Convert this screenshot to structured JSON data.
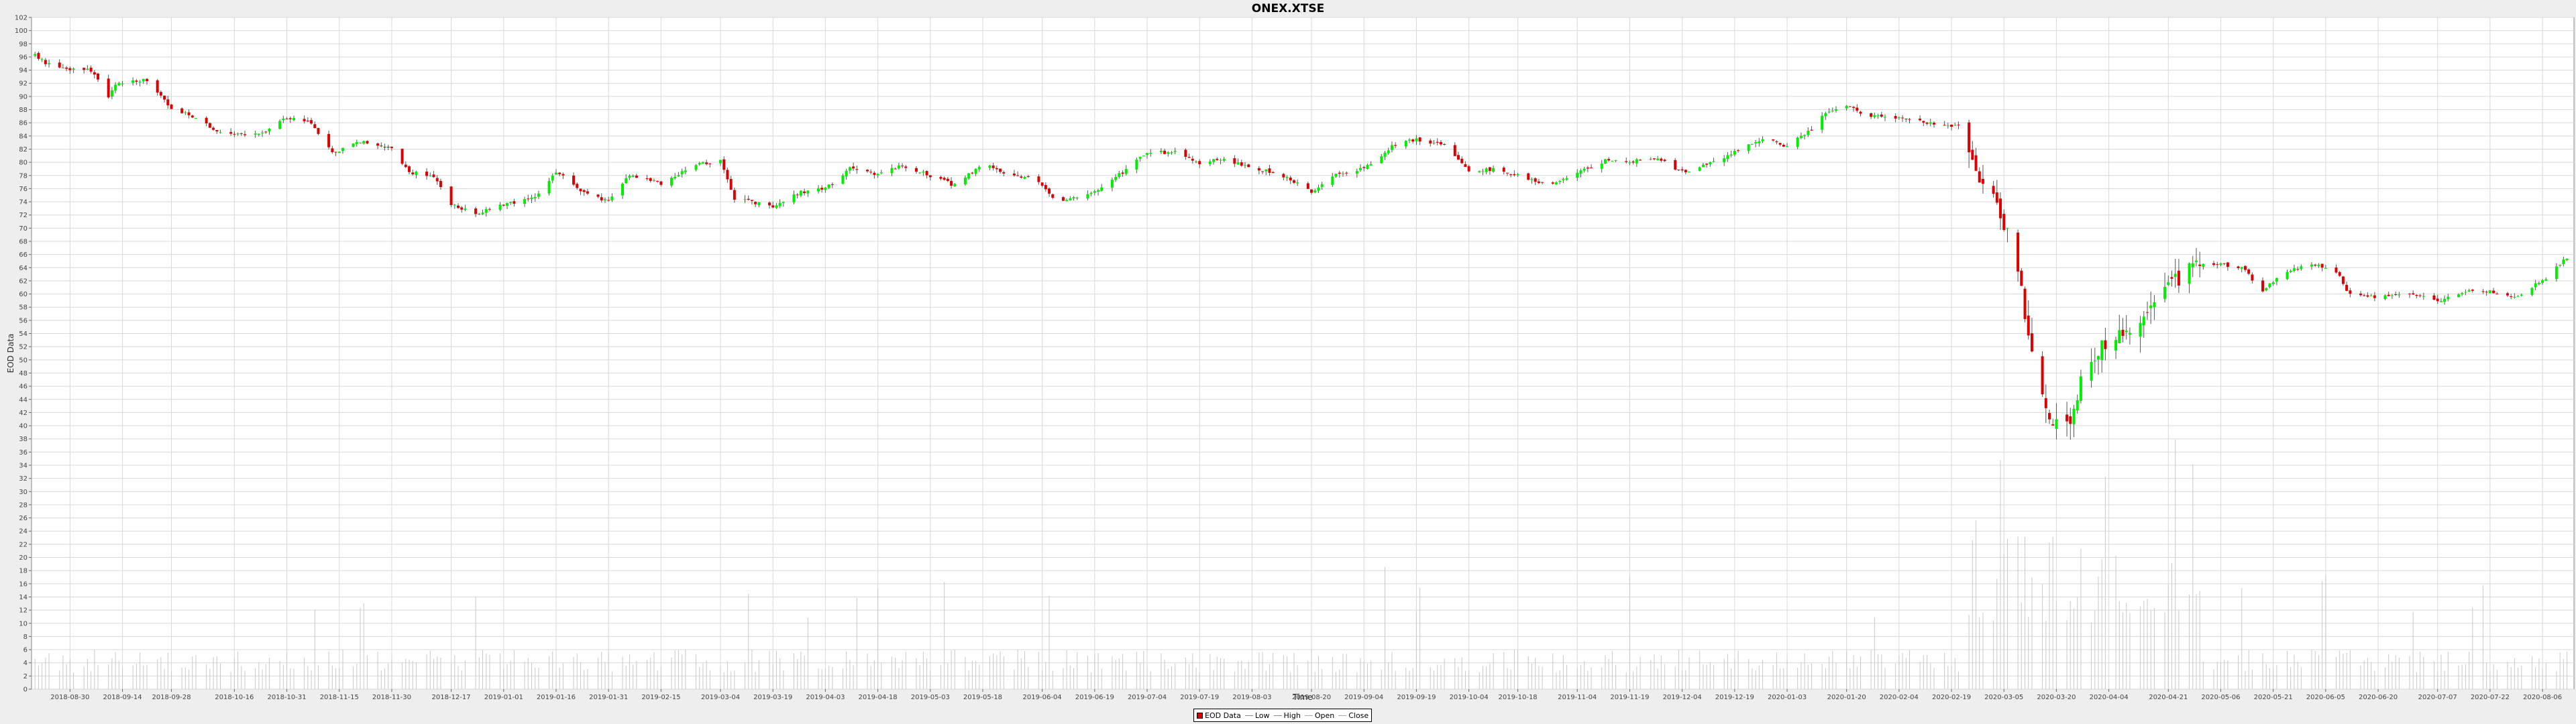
{
  "chart_data": {
    "type": "candlestick",
    "title": "ONEX.XTSE",
    "xlabel": "Time",
    "ylabel": "EOD Data",
    "ylim": [
      0,
      102
    ],
    "ytick_step": 2,
    "x_ticks": [
      "2018-08-30",
      "2018-09-14",
      "2018-09-28",
      "2018-10-16",
      "2018-10-31",
      "2018-11-15",
      "2018-11-30",
      "2018-12-17",
      "2019-01-01",
      "2019-01-16",
      "2019-01-31",
      "2019-02-15",
      "2019-03-04",
      "2019-03-19",
      "2019-04-03",
      "2019-04-18",
      "2019-05-03",
      "2019-05-18",
      "2019-06-04",
      "2019-06-19",
      "2019-07-04",
      "2019-07-19",
      "2019-08-03",
      "2019-08-20",
      "2019-09-04",
      "2019-09-19",
      "2019-10-04",
      "2019-10-18",
      "2019-11-04",
      "2019-11-19",
      "2019-12-04",
      "2019-12-19",
      "2020-01-03",
      "2020-01-20",
      "2020-02-04",
      "2020-02-19",
      "2020-03-05",
      "2020-03-20",
      "2020-04-04",
      "2020-04-21",
      "2020-05-06",
      "2020-05-21",
      "2020-06-05",
      "2020-06-20",
      "2020-07-07",
      "2020-07-22",
      "2020-08-06"
    ],
    "price_anchors": [
      [
        "2018-08-20",
        96.2
      ],
      [
        "2018-08-24",
        94.8
      ],
      [
        "2018-08-30",
        94.2
      ],
      [
        "2018-09-05",
        94.0
      ],
      [
        "2018-09-10",
        90.0
      ],
      [
        "2018-09-12",
        92.0
      ],
      [
        "2018-09-21",
        92.5
      ],
      [
        "2018-09-28",
        88.0
      ],
      [
        "2018-10-05",
        86.8
      ],
      [
        "2018-10-10",
        85.0
      ],
      [
        "2018-10-16",
        84.2
      ],
      [
        "2018-10-24",
        84.5
      ],
      [
        "2018-10-31",
        86.8
      ],
      [
        "2018-11-07",
        86.0
      ],
      [
        "2018-11-13",
        81.5
      ],
      [
        "2018-11-22",
        83.2
      ],
      [
        "2018-11-30",
        82.0
      ],
      [
        "2018-12-05",
        78.5
      ],
      [
        "2018-12-12",
        78.0
      ],
      [
        "2018-12-17",
        73.5
      ],
      [
        "2018-12-24",
        72.2
      ],
      [
        "2019-01-01",
        73.5
      ],
      [
        "2019-01-10",
        74.5
      ],
      [
        "2019-01-16",
        78.5
      ],
      [
        "2019-01-24",
        75.5
      ],
      [
        "2019-01-31",
        74.0
      ],
      [
        "2019-02-06",
        78.0
      ],
      [
        "2019-02-15",
        76.8
      ],
      [
        "2019-02-25",
        79.5
      ],
      [
        "2019-03-04",
        80.5
      ],
      [
        "2019-03-08",
        74.5
      ],
      [
        "2019-03-19",
        73.3
      ],
      [
        "2019-03-27",
        75.5
      ],
      [
        "2019-04-03",
        76.0
      ],
      [
        "2019-04-10",
        79.0
      ],
      [
        "2019-04-18",
        78.0
      ],
      [
        "2019-04-25",
        79.6
      ],
      [
        "2019-05-03",
        78.0
      ],
      [
        "2019-05-10",
        76.5
      ],
      [
        "2019-05-18",
        79.8
      ],
      [
        "2019-05-25",
        78.0
      ],
      [
        "2019-06-02",
        77.5
      ],
      [
        "2019-06-08",
        73.8
      ],
      [
        "2019-06-19",
        75.5
      ],
      [
        "2019-06-27",
        78.5
      ],
      [
        "2019-07-04",
        81.5
      ],
      [
        "2019-07-12",
        81.5
      ],
      [
        "2019-07-19",
        79.8
      ],
      [
        "2019-07-26",
        80.5
      ],
      [
        "2019-08-03",
        79.0
      ],
      [
        "2019-08-10",
        78.5
      ],
      [
        "2019-08-20",
        75.5
      ],
      [
        "2019-08-28",
        78.5
      ],
      [
        "2019-09-04",
        79.0
      ],
      [
        "2019-09-12",
        82.5
      ],
      [
        "2019-09-19",
        83.5
      ],
      [
        "2019-09-27",
        82.5
      ],
      [
        "2019-10-04",
        78.5
      ],
      [
        "2019-10-12",
        79.0
      ],
      [
        "2019-10-18",
        78.0
      ],
      [
        "2019-10-28",
        76.5
      ],
      [
        "2019-11-04",
        78.5
      ],
      [
        "2019-11-12",
        80.2
      ],
      [
        "2019-11-19",
        80.0
      ],
      [
        "2019-11-27",
        80.8
      ],
      [
        "2019-12-04",
        78.5
      ],
      [
        "2019-12-10",
        79.5
      ],
      [
        "2019-12-19",
        81.5
      ],
      [
        "2019-12-27",
        83.5
      ],
      [
        "2020-01-03",
        82.5
      ],
      [
        "2020-01-10",
        85.0
      ],
      [
        "2020-01-14",
        87.5
      ],
      [
        "2020-01-20",
        88.8
      ],
      [
        "2020-01-25",
        87.0
      ],
      [
        "2020-02-04",
        86.8
      ],
      [
        "2020-02-12",
        86.0
      ],
      [
        "2020-02-21",
        85.5
      ],
      [
        "2020-02-27",
        77.5
      ],
      [
        "2020-03-02",
        75.0
      ],
      [
        "2020-03-06",
        69.0
      ],
      [
        "2020-03-10",
        60.0
      ],
      [
        "2020-03-13",
        52.0
      ],
      [
        "2020-03-18",
        41.0
      ],
      [
        "2020-03-23",
        39.5
      ],
      [
        "2020-03-28",
        48.0
      ],
      [
        "2020-04-02",
        52.0
      ],
      [
        "2020-04-08",
        54.5
      ],
      [
        "2020-04-15",
        57.5
      ],
      [
        "2020-04-24",
        62.5
      ],
      [
        "2020-04-30",
        64.5
      ],
      [
        "2020-05-06",
        64.5
      ],
      [
        "2020-05-12",
        64.0
      ],
      [
        "2020-05-18",
        60.5
      ],
      [
        "2020-05-24",
        63.5
      ],
      [
        "2020-06-01",
        64.5
      ],
      [
        "2020-06-08",
        63.5
      ],
      [
        "2020-06-12",
        59.8
      ],
      [
        "2020-06-20",
        59.5
      ],
      [
        "2020-06-30",
        60.0
      ],
      [
        "2020-07-07",
        59.0
      ],
      [
        "2020-07-15",
        60.5
      ],
      [
        "2020-07-22",
        60.5
      ],
      [
        "2020-07-29",
        59.5
      ],
      [
        "2020-08-06",
        62.0
      ],
      [
        "2020-08-13",
        65.5
      ]
    ],
    "series": [
      {
        "name": "EOD Data"
      },
      {
        "name": "Low"
      },
      {
        "name": "High"
      },
      {
        "name": "Open"
      },
      {
        "name": "Close"
      }
    ],
    "colors": {
      "up": "#00ee00",
      "down": "#dd0000",
      "wick": "#555555",
      "volume": "#c8c8c8",
      "grid": "#d8d8d8"
    },
    "legend_position": "bottom-center",
    "grid": true
  }
}
